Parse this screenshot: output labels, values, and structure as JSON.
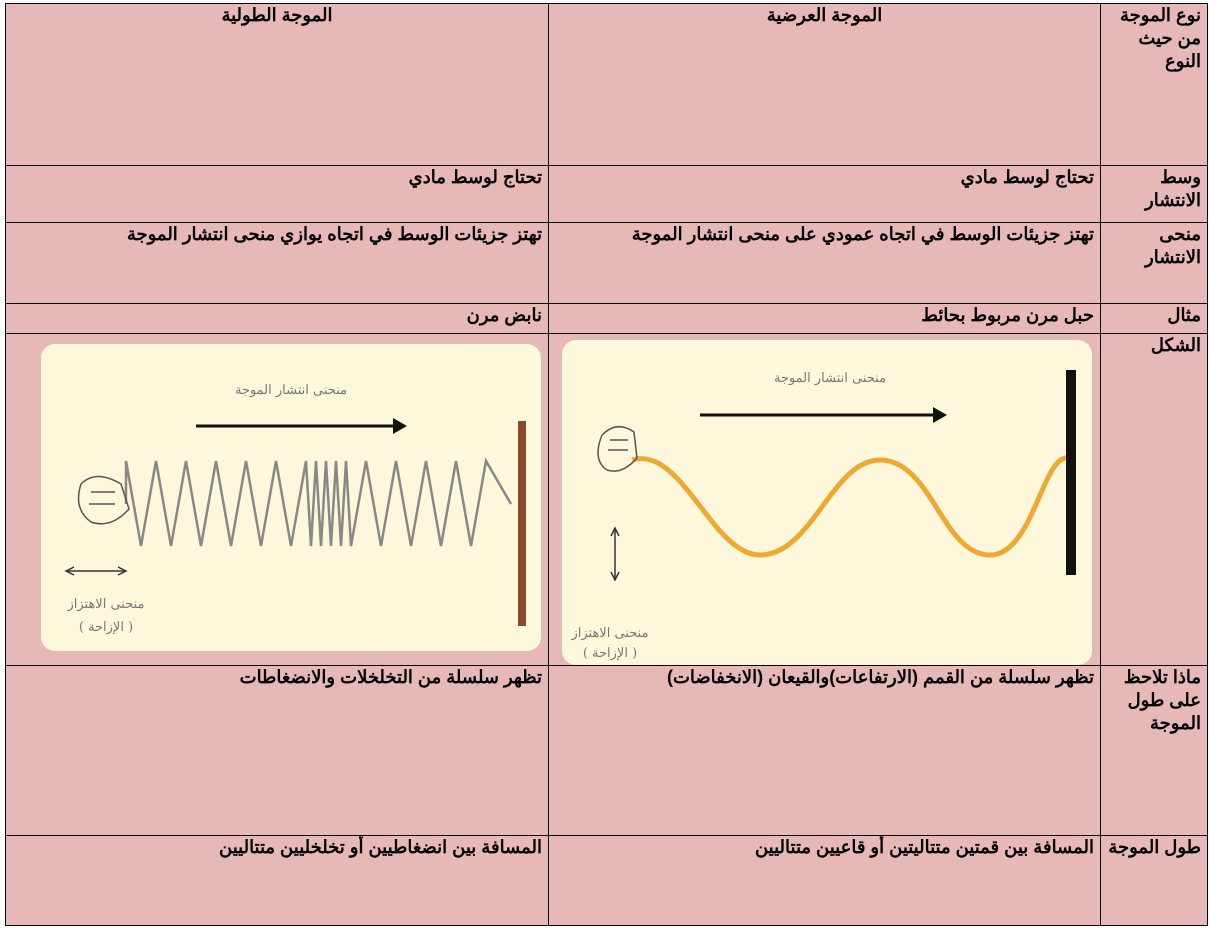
{
  "table": {
    "rows": [
      [
        "نوع الموجة من حيث النوع",
        "الموجة العرضية",
        "الموجة الطولية"
      ],
      [
        "وسط الانتشار",
        "تحتاج لوسط مادي",
        "تحتاج لوسط مادي"
      ],
      [
        "منحى الانتشار",
        "تهتز جزيئات الوسط في اتجاه عمودي على منحى انتشار الموجة",
        "تهتز جزيئات الوسط في اتجاه يوازي منحى انتشار الموجة"
      ],
      [
        "مثال",
        "حبل مرن مربوط بحائط",
        "نابض مرن"
      ],
      [
        "ماذا تلاحظ على طول الموجة",
        "تظهر سلسلة من القمم (الارتفاعات)والقيعان (الانخفاضات)",
        "تظهر سلسلة من التخلخلات والانضغاطات"
      ],
      [
        "طول الموجة",
        "المسافة بين قمتين متتاليتين أو قاعيين متتاليين",
        "المسافة بين انضغاطيين أو تخلخليين متتاليين"
      ]
    ],
    "figure_row": {
      "label": "الشكل",
      "figures": [
        {
          "propagation": "منحنى انتشار الموجة",
          "vibration": "منحنى الاهتزاز",
          "displacement": "( الإزاحة )"
        },
        {
          "propagation": "منحنى انتشار الموجة",
          "vibration": "منحنى الاهتزاز",
          "displacement": "( الإزاحة )"
        }
      ]
    }
  }
}
